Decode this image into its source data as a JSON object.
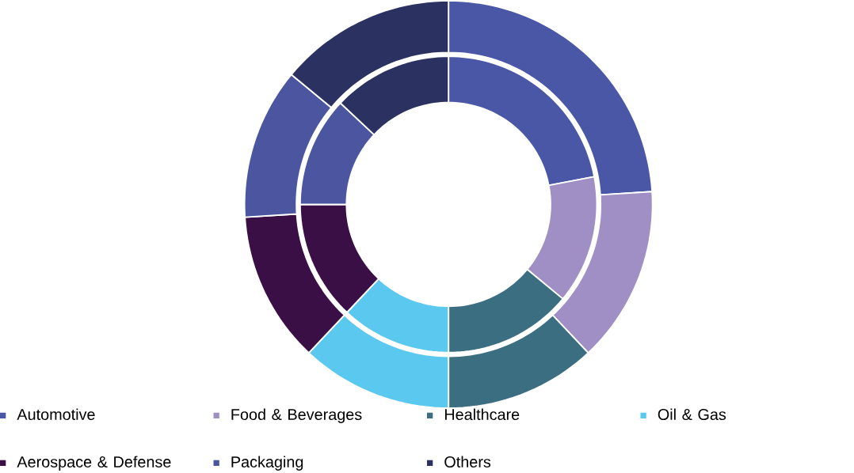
{
  "chart_data": {
    "type": "donut",
    "categories": [
      "Automotive",
      "Food & Beverages",
      "Healthcare",
      "Oil & Gas",
      "Aerospace & Defense",
      "Packaging",
      "Others"
    ],
    "colors": [
      "#4a56a6",
      "#a08fc4",
      "#3b6e80",
      "#5bc8f0",
      "#3a0f45",
      "#4b55a0",
      "#2b3262"
    ],
    "series": [
      {
        "values": [
          24,
          14,
          12,
          12,
          12,
          12,
          14
        ]
      },
      {
        "values": [
          22,
          14,
          14,
          12,
          13,
          12,
          13
        ]
      }
    ],
    "legend": "bottom"
  }
}
